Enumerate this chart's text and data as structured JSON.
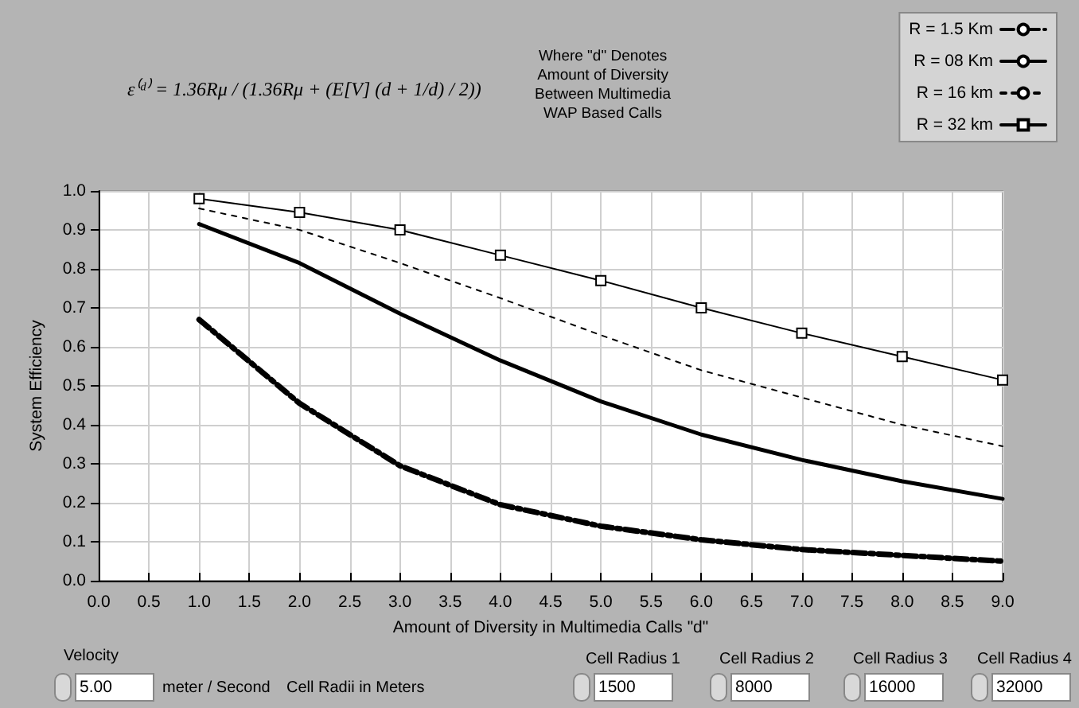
{
  "chart_data": {
    "type": "line",
    "xlabel": "Amount of Diversity in Multimedia Calls \"d\"",
    "ylabel": "System Efficiency",
    "x": [
      1,
      2,
      3,
      4,
      5,
      6,
      7,
      8,
      9
    ],
    "series": [
      {
        "name": "R = 1.5 Km",
        "color": "#000000",
        "line_style": "dashed",
        "marker": "none",
        "values": [
          0.67,
          0.455,
          0.295,
          0.195,
          0.14,
          0.105,
          0.08,
          0.065,
          0.05
        ]
      },
      {
        "name": "R = 08 Km",
        "color": "#000000",
        "line_style": "solid",
        "marker": "none",
        "values": [
          0.915,
          0.815,
          0.685,
          0.565,
          0.46,
          0.375,
          0.31,
          0.255,
          0.21
        ]
      },
      {
        "name": "R = 16 km",
        "color": "#000000",
        "line_style": "dotted",
        "marker": "none",
        "values": [
          0.955,
          0.9,
          0.815,
          0.725,
          0.63,
          0.54,
          0.47,
          0.4,
          0.345
        ]
      },
      {
        "name": "R = 32 km",
        "color": "#000000",
        "line_style": "solid",
        "marker": "square",
        "values": [
          0.98,
          0.945,
          0.9,
          0.835,
          0.77,
          0.7,
          0.635,
          0.575,
          0.515
        ]
      }
    ],
    "xlim": [
      0,
      9
    ],
    "xticks": [
      {
        "value": 0,
        "label": "0.0"
      },
      {
        "value": 0.5,
        "label": "0.5"
      },
      {
        "value": 1,
        "label": "1.0"
      },
      {
        "value": 1.5,
        "label": "1.5"
      },
      {
        "value": 2,
        "label": "2.0"
      },
      {
        "value": 2.5,
        "label": "2.5"
      },
      {
        "value": 3,
        "label": "3.0"
      },
      {
        "value": 3.5,
        "label": "3.5"
      },
      {
        "value": 4,
        "label": "4.0"
      },
      {
        "value": 4.5,
        "label": "4.5"
      },
      {
        "value": 5,
        "label": "5.0"
      },
      {
        "value": 5.5,
        "label": "5.5"
      },
      {
        "value": 6,
        "label": "6.0"
      },
      {
        "value": 6.5,
        "label": "6.5"
      },
      {
        "value": 7,
        "label": "7.0"
      },
      {
        "value": 7.5,
        "label": "7.5"
      },
      {
        "value": 8,
        "label": "8.0"
      },
      {
        "value": 8.5,
        "label": "8.5"
      },
      {
        "value": 9,
        "label": "9.0"
      }
    ],
    "ylim": [
      0,
      1
    ],
    "yticks": [
      {
        "value": 0,
        "label": "0.0"
      },
      0.1,
      0.2,
      0.3,
      0.4,
      0.5,
      0.6,
      0.7,
      0.8,
      0.9,
      {
        "value": 1,
        "label": "1.0"
      }
    ],
    "grid": true,
    "legend": "top right",
    "annotations": [
      "ε⁽ᵈ⁾ = 1.36Rμ / (1.36Rμ + (E[V] (d + 1/d) / 2))",
      "Where \"d\" Denotes\nAmount of Diversity\nBetween Multimedia\nWAP Based Calls",
      "Velocity",
      "5.00",
      "meter / Second",
      "Cell Radii in Meters",
      "Cell Radius 1",
      "1500",
      "Cell Radius 2",
      "8000",
      "Cell Radius 3",
      "16000",
      "Cell Radius 4",
      "32000"
    ]
  }
}
